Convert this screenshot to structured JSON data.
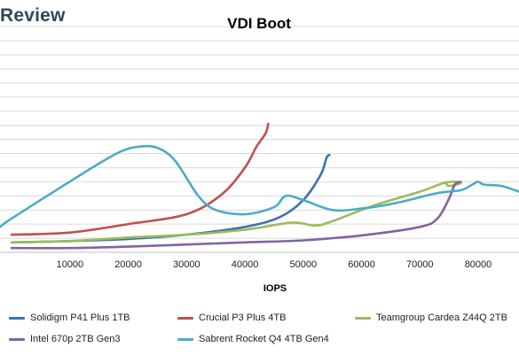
{
  "header": {
    "brand": "Review"
  },
  "chart_data": {
    "type": "line",
    "title": "VDI Boot",
    "xlabel": "IOPS",
    "ylabel": "",
    "xlim": [
      -2000,
      87000
    ],
    "ylim": [
      0,
      160
    ],
    "x_ticks": [
      "10000",
      "20000",
      "30000",
      "40000",
      "50000",
      "60000",
      "70000",
      "80000"
    ],
    "x_tick_values": [
      10000,
      20000,
      30000,
      40000,
      50000,
      60000,
      70000,
      80000
    ],
    "y_gridlines": [
      10,
      20,
      30,
      40,
      50,
      60,
      70,
      80,
      90,
      100,
      110,
      120,
      130,
      140,
      150,
      160,
      170
    ],
    "grid": true,
    "legend_position": "bottom",
    "series": [
      {
        "name": "Solidigm P41 Plus 1TB",
        "color": "#3f6fb4",
        "points": [
          [
            0,
            7
          ],
          [
            10000,
            8
          ],
          [
            20000,
            9.5
          ],
          [
            30000,
            12.5
          ],
          [
            40000,
            18
          ],
          [
            46000,
            25
          ],
          [
            50000,
            37
          ],
          [
            53000,
            55
          ],
          [
            54000,
            67
          ],
          [
            54500,
            69
          ]
        ]
      },
      {
        "name": "Crucial P3 Plus 4TB",
        "color": "#c0504d",
        "points": [
          [
            0,
            12.5
          ],
          [
            10000,
            14
          ],
          [
            20000,
            20
          ],
          [
            30000,
            27
          ],
          [
            36000,
            41
          ],
          [
            40000,
            60
          ],
          [
            42000,
            75
          ],
          [
            43500,
            84
          ],
          [
            44000,
            91
          ]
        ]
      },
      {
        "name": "Teamgroup Cardea Z44Q 2TB",
        "color": "#9bbb59",
        "points": [
          [
            0,
            7
          ],
          [
            10000,
            8
          ],
          [
            20000,
            10.5
          ],
          [
            30000,
            12.5
          ],
          [
            40000,
            16
          ],
          [
            48000,
            21
          ],
          [
            52000,
            19
          ],
          [
            55000,
            22
          ],
          [
            62000,
            33
          ],
          [
            70000,
            43
          ],
          [
            74000,
            49
          ],
          [
            76000,
            50
          ],
          [
            77000,
            49
          ],
          [
            75000,
            47
          ],
          [
            74500,
            49
          ]
        ]
      },
      {
        "name": "Intel 670p 2TB Gen3",
        "color": "#8064a2",
        "points": [
          [
            0,
            3
          ],
          [
            10000,
            3
          ],
          [
            20000,
            4
          ],
          [
            30000,
            5.5
          ],
          [
            40000,
            7
          ],
          [
            50000,
            8.5
          ],
          [
            60000,
            12
          ],
          [
            70000,
            18
          ],
          [
            73000,
            24
          ],
          [
            75000,
            38
          ],
          [
            76000,
            48
          ],
          [
            77000,
            50
          ]
        ]
      },
      {
        "name": "Sabrent Rocket Q4 4TB Gen4",
        "color": "#4bacc6",
        "points": [
          [
            -2000,
            18
          ],
          [
            0,
            24
          ],
          [
            8000,
            45
          ],
          [
            15000,
            63
          ],
          [
            19000,
            72
          ],
          [
            22000,
            75
          ],
          [
            25000,
            74
          ],
          [
            28000,
            65
          ],
          [
            32000,
            40
          ],
          [
            35000,
            30
          ],
          [
            40000,
            27
          ],
          [
            45000,
            32
          ],
          [
            47000,
            40
          ],
          [
            50000,
            37
          ],
          [
            55000,
            30
          ],
          [
            60000,
            31
          ],
          [
            66000,
            35
          ],
          [
            73000,
            42
          ],
          [
            77000,
            44
          ],
          [
            79000,
            48
          ],
          [
            80000,
            50
          ],
          [
            81000,
            48
          ],
          [
            84000,
            47
          ],
          [
            87000,
            43
          ]
        ]
      }
    ]
  }
}
